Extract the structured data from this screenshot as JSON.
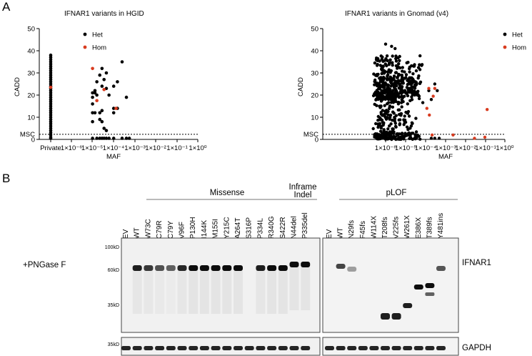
{
  "panels": {
    "a_letter": "A",
    "b_letter": "B"
  },
  "scatter": {
    "legend_het": "Het",
    "legend_hom": "Hom",
    "het_color": "#000000",
    "hom_color": "#d83b1f",
    "ylabel": "CADD",
    "xlabel": "MAF",
    "msc_label": "MSC",
    "yticks": [
      "0",
      "10",
      "20",
      "30",
      "40",
      "50"
    ],
    "xticks_hgid": [
      "Private",
      "1×10⁻⁶",
      "1×10⁻⁵",
      "1×10⁻⁴",
      "1×10⁻³",
      "1×10⁻²",
      "1×10⁻¹",
      "1×10⁰"
    ],
    "xticks_gnomad": [
      "1×10⁻⁶",
      "1×10⁻⁵",
      "1×10⁻⁴",
      "1×10⁻³",
      "1×10⁻²",
      "1×10⁻¹",
      "1×10⁰"
    ]
  },
  "chart_data": [
    {
      "type": "scatter",
      "title": "IFNAR1 variants in HGID",
      "xlabel": "MAF",
      "ylabel": "CADD",
      "xscale": "log10 (with 'Private' category)",
      "ylim": [
        0,
        50
      ],
      "msc_threshold": 2.3,
      "legend": [
        "Het",
        "Hom"
      ],
      "legend_position": "top-right",
      "het_private_cadd": [
        38,
        37,
        36,
        35,
        34,
        33,
        32,
        31,
        30,
        29,
        28,
        27,
        26,
        25,
        24,
        23,
        22,
        21,
        20,
        19,
        18,
        17,
        16,
        15,
        14,
        13,
        12,
        11,
        10,
        9,
        8,
        7,
        6,
        5,
        4,
        3,
        2,
        1,
        0.5
      ],
      "het_points": [
        {
          "maf": 1e-05,
          "cadd": 21
        },
        {
          "maf": 1e-05,
          "cadd": 19
        },
        {
          "maf": 1e-05,
          "cadd": 16
        },
        {
          "maf": 1e-05,
          "cadd": 12
        },
        {
          "maf": 1e-05,
          "cadd": 8
        },
        {
          "maf": 1e-05,
          "cadd": 0.5
        },
        {
          "maf": 1.3e-05,
          "cadd": 21
        },
        {
          "maf": 1.3e-05,
          "cadd": 22
        },
        {
          "maf": 1.3e-05,
          "cadd": 12
        },
        {
          "maf": 1.6e-05,
          "cadd": 26
        },
        {
          "maf": 1.6e-05,
          "cadd": 20
        },
        {
          "maf": 1.6e-05,
          "cadd": 0.5
        },
        {
          "maf": 2.2e-05,
          "cadd": 29
        },
        {
          "maf": 2.2e-05,
          "cadd": 12
        },
        {
          "maf": 2.2e-05,
          "cadd": 9
        },
        {
          "maf": 2.2e-05,
          "cadd": 0.5
        },
        {
          "maf": 2.8e-05,
          "cadd": 32
        },
        {
          "maf": 2.8e-05,
          "cadd": 24
        },
        {
          "maf": 2.8e-05,
          "cadd": 13
        },
        {
          "maf": 2.8e-05,
          "cadd": 8
        },
        {
          "maf": 2.8e-05,
          "cadd": 0.5
        },
        {
          "maf": 3.5e-05,
          "cadd": 27
        },
        {
          "maf": 3.5e-05,
          "cadd": 5
        },
        {
          "maf": 3.5e-05,
          "cadd": 0.5
        },
        {
          "maf": 4.5e-05,
          "cadd": 30
        },
        {
          "maf": 4.5e-05,
          "cadd": 23
        },
        {
          "maf": 4.5e-05,
          "cadd": 4
        },
        {
          "maf": 4.5e-05,
          "cadd": 0.5
        },
        {
          "maf": 6e-05,
          "cadd": 20
        },
        {
          "maf": 6e-05,
          "cadd": 0.5
        },
        {
          "maf": 0.0001,
          "cadd": 24
        },
        {
          "maf": 0.0001,
          "cadd": 14
        },
        {
          "maf": 0.0001,
          "cadd": 12
        },
        {
          "maf": 0.0001,
          "cadd": 0.5
        },
        {
          "maf": 0.00015,
          "cadd": 26
        },
        {
          "maf": 0.00015,
          "cadd": 14
        },
        {
          "maf": 0.00025,
          "cadd": 35
        },
        {
          "maf": 0.00025,
          "cadd": 0.5
        },
        {
          "maf": 0.0004,
          "cadd": 19
        },
        {
          "maf": 0.0004,
          "cadd": 0.5
        },
        {
          "maf": 0.00055,
          "cadd": 0.5
        }
      ],
      "hom_points": [
        {
          "maf": "Private",
          "cadd": 23.5
        },
        {
          "maf": 1e-05,
          "cadd": 32
        },
        {
          "maf": 1.6e-05,
          "cadd": 17.5
        },
        {
          "maf": 3.5e-05,
          "cadd": 22.5
        },
        {
          "maf": 0.00013,
          "cadd": 14
        }
      ]
    },
    {
      "type": "scatter",
      "title": "IFNAR1 variants in Gnomad (v4)",
      "xlabel": "MAF",
      "ylabel": "CADD",
      "xscale": "log10",
      "xlim": [
        1e-06,
        1
      ],
      "ylim": [
        0,
        50
      ],
      "msc_threshold": 2.3,
      "legend": [
        "Het",
        "Hom"
      ],
      "legend_position": "top-right",
      "het_points_summary": "dense cloud of several hundred heterozygous variants at MAF 1e-6 to 1e-4, CADD 0 to 43",
      "het_points": [
        {
          "maf": 1e-06,
          "cadd": 43
        },
        {
          "maf": 2e-06,
          "cadd": 42
        },
        {
          "maf": 3e-06,
          "cadd": 41
        },
        {
          "maf": 0.00015,
          "cadd": 22
        },
        {
          "maf": 0.0002,
          "cadd": 18
        },
        {
          "maf": 0.0003,
          "cadd": 25
        },
        {
          "maf": 0.0004,
          "cadd": 22
        },
        {
          "maf": 0.0002,
          "cadd": 0.5
        },
        {
          "maf": 0.0003,
          "cadd": 0.5
        },
        {
          "maf": 0.0005,
          "cadd": 0.5
        }
      ],
      "hom_points": [
        {
          "maf": 0.00015,
          "cadd": 23
        },
        {
          "maf": 0.00025,
          "cadd": 19.5
        },
        {
          "maf": 0.0003,
          "cadd": 23
        },
        {
          "maf": 0.00016,
          "cadd": 11
        },
        {
          "maf": 0.00012,
          "cadd": 14
        },
        {
          "maf": 0.00022,
          "cadd": 2
        },
        {
          "maf": 0.0025,
          "cadd": 2
        },
        {
          "maf": 0.03,
          "cadd": 0.5
        },
        {
          "maf": 0.1,
          "cadd": 1
        },
        {
          "maf": 0.13,
          "cadd": 13.5
        }
      ]
    }
  ],
  "blot": {
    "groups": {
      "missense": "Missense",
      "inframe_line1": "Inframe",
      "inframe_line2": "Indel",
      "plof": "pLOF"
    },
    "treatment": "+PNGase F",
    "lanes_left": [
      "EV",
      "WT",
      "W73C",
      "C79R",
      "C79Y",
      "V96F",
      "P130H",
      "I144K",
      "M155I",
      "Y215C",
      "A264T",
      "S316P",
      "P334L",
      "R340G",
      "S422R",
      "N44del",
      "P335del"
    ],
    "lanes_right": [
      "EV",
      "WT",
      "N29fs",
      "F45fs",
      "W114X",
      "T208fs",
      "V225fs",
      "W261X",
      "E386X",
      "T389fs",
      "Y481ins"
    ],
    "mw_markers": [
      "100kD",
      "60kD",
      "35kD"
    ],
    "gapdh_marker": "35kD",
    "protein_main": "IFNAR1",
    "protein_loading": "GAPDH",
    "band_intensity_left": [
      0,
      0.9,
      0.75,
      0.6,
      0.5,
      0.85,
      1,
      1,
      1,
      1,
      1,
      0,
      0.9,
      1,
      1,
      1,
      1
    ],
    "band_intensity_right": [
      0,
      0.7,
      0.2,
      0,
      0,
      0.9,
      0.9,
      0.9,
      1,
      1,
      0.6
    ]
  }
}
